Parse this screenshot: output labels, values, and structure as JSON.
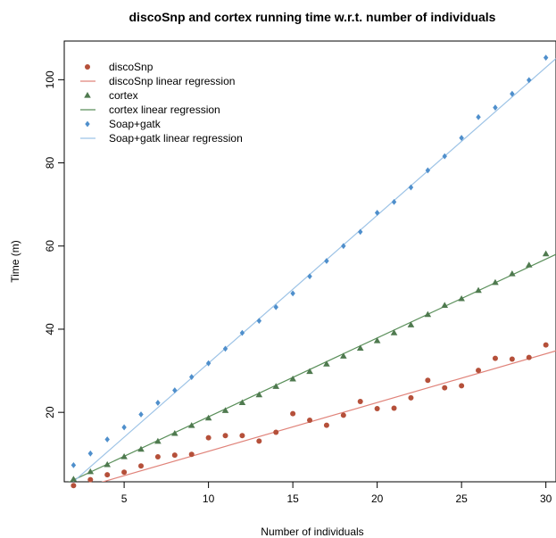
{
  "chart_data": {
    "type": "scatter",
    "title": "discoSnp and cortex running time w.r.t. number of individuals",
    "xlabel": "Number of individuals",
    "ylabel": "Time (m)",
    "xlim": [
      1.45,
      30.6
    ],
    "ylim": [
      3.3,
      109.3
    ],
    "xticks": [
      5,
      10,
      15,
      20,
      25,
      30
    ],
    "yticks": [
      20,
      40,
      60,
      80,
      100
    ],
    "grid": false,
    "legend_position": "top-left",
    "series": [
      {
        "name": "discoSnp",
        "marker": "circle",
        "color": "#b5503a",
        "x": [
          2,
          3,
          4,
          5,
          6,
          7,
          8,
          9,
          10,
          11,
          12,
          13,
          14,
          15,
          16,
          17,
          18,
          19,
          20,
          21,
          22,
          23,
          24,
          25,
          26,
          27,
          28,
          29,
          30
        ],
        "y": [
          2.4,
          3.8,
          5.0,
          5.6,
          7.1,
          9.3,
          9.7,
          9.9,
          13.9,
          14.4,
          14.4,
          13.1,
          15.2,
          19.7,
          18.1,
          16.9,
          19.3,
          22.6,
          20.9,
          21.0,
          23.5,
          27.7,
          25.9,
          26.4,
          30.1,
          33.0,
          32.8,
          33.2,
          36.2
        ]
      },
      {
        "name": "discoSnp linear regression",
        "type": "line",
        "color": "#e0837a",
        "x": [
          1.45,
          30.6
        ],
        "y": [
          0.6,
          34.8
        ]
      },
      {
        "name": "cortex",
        "marker": "triangle",
        "color": "#4f7a4f",
        "x": [
          2,
          3,
          4,
          5,
          6,
          7,
          8,
          9,
          10,
          11,
          12,
          13,
          14,
          15,
          16,
          17,
          18,
          19,
          20,
          21,
          22,
          23,
          24,
          25,
          26,
          27,
          28,
          29,
          30
        ],
        "y": [
          3.9,
          5.7,
          7.4,
          9.3,
          11.1,
          13.0,
          14.9,
          16.8,
          18.6,
          20.4,
          22.3,
          24.2,
          26.2,
          28.0,
          29.8,
          31.6,
          33.5,
          35.4,
          37.2,
          39.1,
          41.0,
          43.5,
          45.7,
          47.3,
          49.3,
          51.2,
          53.3,
          55.4,
          58.1
        ]
      },
      {
        "name": "cortex linear regression",
        "type": "line",
        "color": "#5a8f5a",
        "x": [
          1.45,
          30.6
        ],
        "y": [
          2.7,
          58.0
        ]
      },
      {
        "name": "Soap+gatk",
        "marker": "diamond",
        "color": "#4f8fcc",
        "x": [
          2,
          3,
          4,
          5,
          6,
          7,
          8,
          9,
          10,
          11,
          12,
          13,
          14,
          15,
          16,
          17,
          18,
          19,
          20,
          21,
          22,
          23,
          24,
          25,
          26,
          27,
          28,
          29,
          30
        ],
        "y": [
          7.3,
          10.1,
          13.5,
          16.4,
          19.5,
          22.3,
          25.3,
          28.5,
          31.8,
          35.3,
          39.1,
          42.0,
          45.3,
          48.6,
          52.7,
          56.4,
          60.0,
          63.4,
          68.0,
          70.6,
          74.1,
          78.2,
          81.6,
          86.0,
          91.0,
          93.3,
          96.6,
          99.9,
          105.3
        ]
      },
      {
        "name": "Soap+gatk linear regression",
        "type": "line",
        "color": "#9dc3e6",
        "x": [
          1.45,
          30.6
        ],
        "y": [
          1.4,
          105.1
        ]
      }
    ]
  }
}
